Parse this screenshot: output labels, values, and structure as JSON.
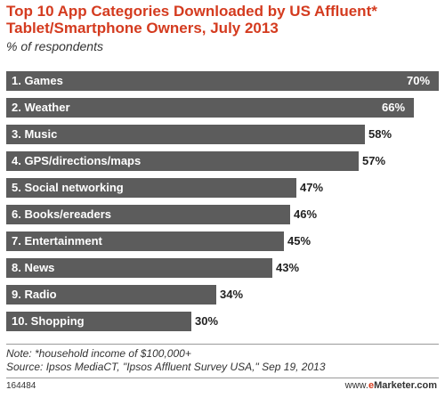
{
  "header": {
    "title": "Top 10 App Categories Downloaded by US Affluent* Tablet/Smartphone Owners, July 2013",
    "subtitle": "% of respondents"
  },
  "chart_data": {
    "type": "bar",
    "orientation": "horizontal",
    "categories": [
      "1. Games",
      "2. Weather",
      "3. Music",
      "4. GPS/directions/maps",
      "5. Social networking",
      "6. Books/ereaders",
      "7. Entertainment",
      "8. News",
      "9. Radio",
      "10. Shopping"
    ],
    "values": [
      70,
      66,
      58,
      57,
      47,
      46,
      45,
      43,
      34,
      30
    ],
    "value_labels": [
      "70%",
      "66%",
      "58%",
      "57%",
      "47%",
      "46%",
      "45%",
      "43%",
      "34%",
      "30%"
    ],
    "bar_color": "#5c5c5c",
    "xlim": [
      0,
      70
    ]
  },
  "notes": {
    "note": "Note: *household income of $100,000+",
    "source": "Source: Ipsos MediaCT, \"Ipsos Affluent Survey USA,\" Sep 19, 2013"
  },
  "footer": {
    "id": "164484",
    "brand_prefix": "www.",
    "brand_e": "e",
    "brand_rest": "Marketer.com"
  },
  "colors": {
    "title": "#d43b1f",
    "bar": "#5c5c5c"
  }
}
